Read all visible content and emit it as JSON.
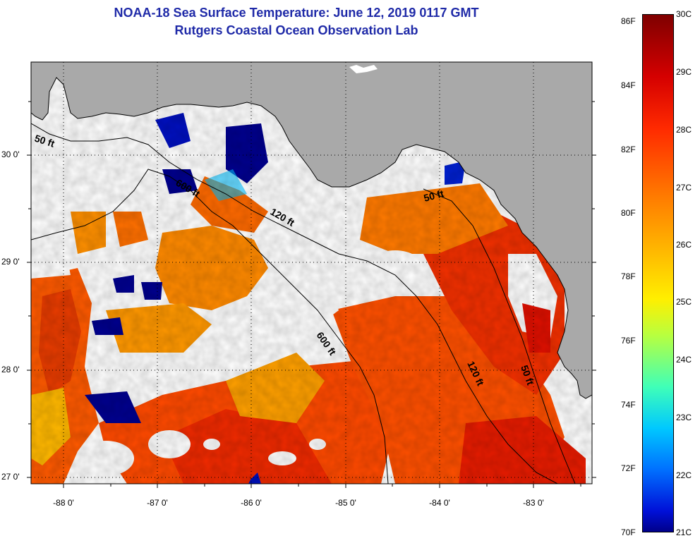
{
  "title": {
    "line1": "NOAA-18 Sea Surface Temperature:  June 12, 2019 0117 GMT",
    "line2": "Rutgers Coastal Ocean Observation Lab"
  },
  "axes": {
    "lat_labels": [
      "30 0'",
      "29 0'",
      "28 0'",
      "27 0'"
    ],
    "lon_labels": [
      "-88 0'",
      "-87 0'",
      "-86 0'",
      "-85 0'",
      "-84 0'",
      "-83 0'"
    ]
  },
  "contours": {
    "label_50": "50 ft",
    "label_120": "120 ft",
    "label_600": "600 ft"
  },
  "colorbar": {
    "fahrenheit": [
      "86F",
      "84F",
      "82F",
      "80F",
      "78F",
      "76F",
      "74F",
      "72F",
      "70F"
    ],
    "celsius": [
      "30C",
      "29C",
      "28C",
      "27C",
      "26C",
      "25C",
      "24C",
      "23C",
      "22C",
      "21C"
    ]
  },
  "colors": {
    "land": "#a9a9a9",
    "title": "#1f2aa8",
    "warm": "#ff5a00",
    "hot": "#e61a00",
    "mid": "#ff9a00",
    "cool": "#ffd400",
    "cold": "#00008f",
    "cloud": "#ffffff"
  }
}
